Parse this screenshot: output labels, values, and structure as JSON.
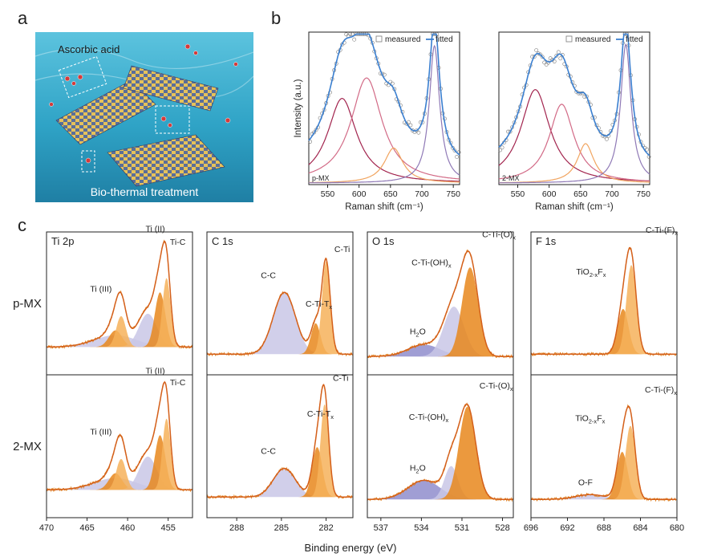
{
  "panels": {
    "a": "a",
    "b": "b",
    "c": "c"
  },
  "illustration": {
    "top_label": "Ascorbic acid",
    "bottom_label": "Bio-thermal treatment",
    "background_color": "#2fa3c6"
  },
  "colors": {
    "measured": "#7a7a7a",
    "fitted": "#3a7fd0",
    "xps_envelope": "#d4601b",
    "xps_measured": "#e0821f",
    "peak_maroon": "#a2244e",
    "peak_pink": "#d26a86",
    "peak_peach": "#f1a45f",
    "peak_purple": "#8f79b6",
    "fill_lavender": "#c9c7e6",
    "fill_orange_dark": "#e8871c",
    "fill_orange_light": "#f6b25a",
    "fill_blue": "#8f8dcc"
  },
  "chart_data": [
    {
      "type": "line",
      "id": "raman-pMX",
      "sample_label": "p-MX",
      "xlabel": "Raman shift (cm⁻¹)",
      "ylabel": "Intensity (a.u.)",
      "xlim": [
        520,
        760
      ],
      "xticks": [
        550,
        600,
        650,
        700,
        750
      ],
      "legend": [
        "measured",
        "fitted"
      ],
      "legend_position": "top-right",
      "baseline": 0.1,
      "peaks": [
        {
          "center": 573,
          "width": 28,
          "height": 0.58,
          "color": "peak_maroon"
        },
        {
          "center": 612,
          "width": 30,
          "height": 0.72,
          "color": "peak_pink"
        },
        {
          "center": 655,
          "width": 18,
          "height": 0.24,
          "color": "peak_peach"
        },
        {
          "center": 720,
          "width": 10,
          "height": 0.94,
          "color": "peak_purple"
        }
      ]
    },
    {
      "type": "line",
      "id": "raman-2MX",
      "sample_label": "2-MX",
      "xlabel": "Raman shift (cm⁻¹)",
      "xlim": [
        520,
        760
      ],
      "xticks": [
        550,
        600,
        650,
        700,
        750
      ],
      "legend": [
        "measured",
        "fitted"
      ],
      "legend_position": "top-right",
      "baseline": 0.1,
      "peaks": [
        {
          "center": 578,
          "width": 28,
          "height": 0.64,
          "color": "peak_maroon"
        },
        {
          "center": 620,
          "width": 24,
          "height": 0.54,
          "color": "peak_pink"
        },
        {
          "center": 658,
          "width": 16,
          "height": 0.27,
          "color": "peak_peach"
        },
        {
          "center": 722,
          "width": 10,
          "height": 0.95,
          "color": "peak_purple"
        }
      ]
    },
    {
      "type": "area",
      "id": "xps-grid",
      "xlabel": "Binding energy (eV)",
      "rows": [
        "p-MX",
        "2-MX"
      ],
      "columns": [
        {
          "title": "Ti 2p",
          "xlim": [
            470,
            452
          ],
          "xticks": [
            470,
            465,
            460,
            455
          ]
        },
        {
          "title": "C 1s",
          "xlim": [
            290,
            280.2
          ],
          "xticks": [
            288,
            285,
            282
          ]
        },
        {
          "title": "O 1s",
          "xlim": [
            538,
            527.2
          ],
          "xticks": [
            537,
            534,
            531,
            528
          ]
        },
        {
          "title": "F 1s",
          "xlim": [
            696,
            680
          ],
          "xticks": [
            696,
            692,
            688,
            684,
            680
          ]
        }
      ],
      "panels": [
        {
          "row": 0,
          "col": 0,
          "baseline": 0.18,
          "peaks": [
            {
              "center": 461.5,
              "width": 2.6,
              "height": 0.1,
              "color": "fill_lavender",
              "label": ""
            },
            {
              "center": 461.5,
              "width": 0.8,
              "height": 0.14,
              "color": "fill_orange_dark",
              "label": "Ti (III)"
            },
            {
              "center": 457.5,
              "width": 1.1,
              "height": 0.28,
              "color": "fill_lavender",
              "label": ""
            },
            {
              "center": 460.8,
              "width": 0.6,
              "height": 0.26,
              "color": "fill_orange_light",
              "label": ""
            },
            {
              "center": 456.0,
              "width": 0.65,
              "height": 0.46,
              "color": "fill_orange_dark",
              "label": "Ti (II)"
            },
            {
              "center": 455.2,
              "width": 0.5,
              "height": 0.58,
              "color": "fill_orange_light",
              "label": "Ti-C"
            }
          ]
        },
        {
          "row": 0,
          "col": 1,
          "baseline": 0.12,
          "peaks": [
            {
              "center": 284.8,
              "width": 0.75,
              "height": 0.52,
              "color": "fill_lavender",
              "label": "C-C"
            },
            {
              "center": 282.7,
              "width": 0.32,
              "height": 0.26,
              "color": "fill_orange_dark",
              "label": "C-Ti-Tx"
            },
            {
              "center": 282.0,
              "width": 0.28,
              "height": 0.78,
              "color": "fill_orange_light",
              "label": "C-Ti"
            }
          ]
        },
        {
          "row": 0,
          "col": 2,
          "baseline": 0.1,
          "peaks": [
            {
              "center": 533.8,
              "width": 1.2,
              "height": 0.1,
              "color": "fill_blue",
              "label": "H2O"
            },
            {
              "center": 531.6,
              "width": 0.75,
              "height": 0.42,
              "color": "fill_lavender",
              "label": "C-Ti-(OH)x"
            },
            {
              "center": 530.4,
              "width": 0.6,
              "height": 0.75,
              "color": "fill_orange_dark",
              "label": "C-Ti-(O)x"
            }
          ]
        },
        {
          "row": 0,
          "col": 3,
          "baseline": 0.12,
          "peaks": [
            {
              "center": 685.9,
              "width": 0.6,
              "height": 0.38,
              "color": "fill_orange_dark",
              "label": "TiO2-xFx"
            },
            {
              "center": 685.0,
              "width": 0.55,
              "height": 0.75,
              "color": "fill_orange_light",
              "label": "C-Ti-(F)x"
            }
          ]
        },
        {
          "row": 1,
          "col": 0,
          "baseline": 0.18,
          "peaks": [
            {
              "center": 461.5,
              "width": 2.6,
              "height": 0.1,
              "color": "fill_lavender",
              "label": ""
            },
            {
              "center": 461.5,
              "width": 0.8,
              "height": 0.14,
              "color": "fill_orange_dark",
              "label": "Ti (III)"
            },
            {
              "center": 457.5,
              "width": 1.1,
              "height": 0.28,
              "color": "fill_lavender",
              "label": ""
            },
            {
              "center": 460.8,
              "width": 0.6,
              "height": 0.26,
              "color": "fill_orange_light",
              "label": ""
            },
            {
              "center": 456.0,
              "width": 0.65,
              "height": 0.46,
              "color": "fill_orange_dark",
              "label": "Ti (II)"
            },
            {
              "center": 455.2,
              "width": 0.5,
              "height": 0.6,
              "color": "fill_orange_light",
              "label": "Ti-C"
            }
          ]
        },
        {
          "row": 1,
          "col": 1,
          "baseline": 0.12,
          "peaks": [
            {
              "center": 284.8,
              "width": 0.75,
              "height": 0.24,
              "color": "fill_lavender",
              "label": "C-C"
            },
            {
              "center": 282.6,
              "width": 0.34,
              "height": 0.42,
              "color": "fill_orange_dark",
              "label": "C-Ti-Tx"
            },
            {
              "center": 282.1,
              "width": 0.28,
              "height": 0.78,
              "color": "fill_orange_light",
              "label": "C-Ti"
            }
          ]
        },
        {
          "row": 1,
          "col": 2,
          "baseline": 0.1,
          "peaks": [
            {
              "center": 533.8,
              "width": 1.2,
              "height": 0.16,
              "color": "fill_blue",
              "label": "H2O"
            },
            {
              "center": 531.8,
              "width": 0.5,
              "height": 0.28,
              "color": "fill_lavender",
              "label": "C-Ti-(OH)x"
            },
            {
              "center": 530.6,
              "width": 0.62,
              "height": 0.78,
              "color": "fill_orange_dark",
              "label": "C-Ti-(O)x"
            }
          ]
        },
        {
          "row": 1,
          "col": 3,
          "baseline": 0.1,
          "peaks": [
            {
              "center": 689.5,
              "width": 1.6,
              "height": 0.04,
              "color": "fill_lavender",
              "label": "O-F"
            },
            {
              "center": 686.0,
              "width": 0.6,
              "height": 0.4,
              "color": "fill_orange_dark",
              "label": "TiO2-xFx"
            },
            {
              "center": 685.1,
              "width": 0.55,
              "height": 0.62,
              "color": "fill_orange_light",
              "label": "C-Ti-(F)x"
            }
          ]
        }
      ]
    }
  ]
}
